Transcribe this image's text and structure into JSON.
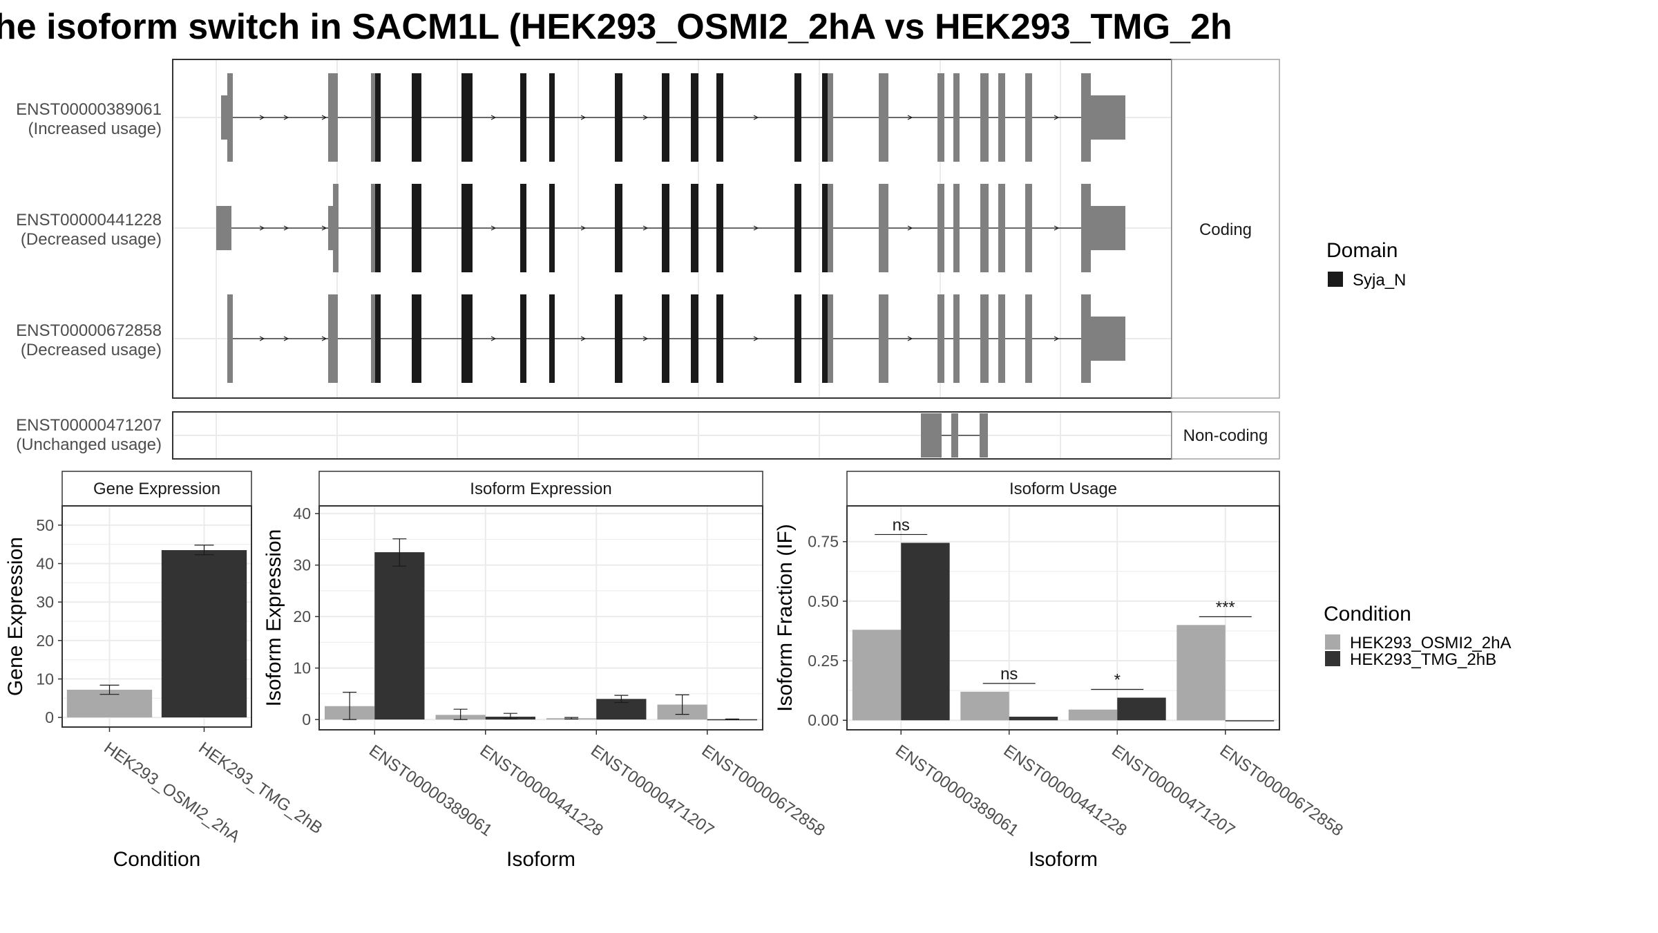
{
  "title": "he isoform switch in SACM1L (HEK293_OSMI2_2hA vs HEK293_TMG_2h",
  "colors": {
    "domain": "#1a1a1a",
    "exon": "#808080",
    "condition_a": "#a9a9a9",
    "condition_b": "#333333",
    "panel_border": "#333333",
    "strip_border": "#a0a0a0",
    "grid": "#ebebeb",
    "text": "#4d4d4d"
  },
  "structure": {
    "groups": [
      {
        "label": "Coding",
        "isoforms": [
          {
            "id": "ENST00000389061",
            "usage": "(Increased usage)"
          },
          {
            "id": "ENST00000441228",
            "usage": "(Decreased usage)"
          },
          {
            "id": "ENST00000672858",
            "usage": "(Decreased usage)"
          }
        ]
      },
      {
        "label": "Non-coding",
        "isoforms": [
          {
            "id": "ENST00000471207",
            "usage": "(Unchanged usage)"
          }
        ]
      }
    ]
  },
  "legends": {
    "domain": {
      "title": "Domain",
      "items": [
        {
          "label": "Syja_N",
          "color": "#1a1a1a"
        }
      ]
    },
    "condition": {
      "title": "Condition",
      "items": [
        {
          "label": "HEK293_OSMI2_2hA",
          "color": "#a9a9a9"
        },
        {
          "label": "HEK293_TMG_2hB",
          "color": "#333333"
        }
      ]
    }
  },
  "chart_data": [
    {
      "type": "bar",
      "title": "Gene Expression",
      "xlabel": "Condition",
      "ylabel": "Gene Expression",
      "ylim": [
        -2.5,
        55
      ],
      "yticks": [
        0,
        10,
        20,
        30,
        40,
        50
      ],
      "categories": [
        "HEK293_OSMI2_2hA",
        "HEK293_TMG_2hB"
      ],
      "values": [
        7.2,
        43.5
      ],
      "errors": [
        [
          6.0,
          8.4
        ],
        [
          42.3,
          44.8
        ]
      ]
    },
    {
      "type": "bar",
      "title": "Isoform Expression",
      "xlabel": "Isoform",
      "ylabel": "Isoform Expression",
      "ylim": [
        -2,
        41.5
      ],
      "yticks": [
        0,
        10,
        20,
        30,
        40
      ],
      "categories": [
        "ENST00000389061",
        "ENST00000441228",
        "ENST00000471207",
        "ENST00000672858"
      ],
      "series": [
        {
          "name": "HEK293_OSMI2_2hA",
          "values": [
            2.6,
            0.9,
            0.25,
            2.9
          ],
          "errors": [
            [
              0,
              5.3
            ],
            [
              0,
              2.0
            ],
            [
              0.1,
              0.4
            ],
            [
              1.0,
              4.8
            ]
          ]
        },
        {
          "name": "HEK293_TMG_2hB",
          "values": [
            32.5,
            0.55,
            4.0,
            0.05
          ],
          "errors": [
            [
              29.8,
              35.1
            ],
            [
              0.1,
              1.2
            ],
            [
              3.3,
              4.7
            ],
            [
              0,
              0.1
            ]
          ]
        }
      ]
    },
    {
      "type": "bar",
      "title": "Isoform Usage",
      "xlabel": "Isoform",
      "ylabel": "Isoform Fraction (IF)",
      "ylim": [
        -0.04,
        0.9
      ],
      "yticks": [
        0.0,
        0.25,
        0.5,
        0.75
      ],
      "ytick_labels": [
        "0.00",
        "0.25",
        "0.50",
        "0.75"
      ],
      "categories": [
        "ENST00000389061",
        "ENST00000441228",
        "ENST00000471207",
        "ENST00000672858"
      ],
      "series": [
        {
          "name": "HEK293_OSMI2_2hA",
          "values": [
            0.38,
            0.12,
            0.045,
            0.4
          ]
        },
        {
          "name": "HEK293_TMG_2hB",
          "values": [
            0.745,
            0.015,
            0.095,
            0.0
          ]
        }
      ],
      "significance": [
        "ns",
        "ns",
        "*",
        "***"
      ]
    }
  ]
}
